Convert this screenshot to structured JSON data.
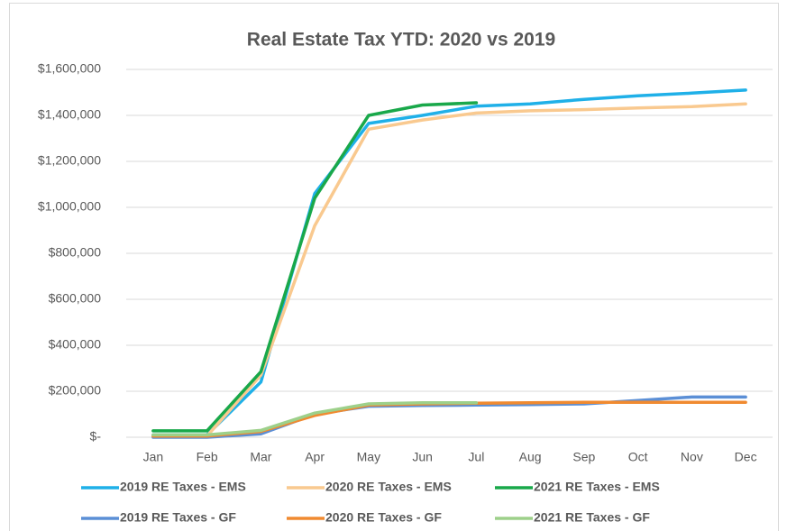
{
  "chart_data": {
    "type": "line",
    "title": "Real Estate Tax YTD:  2020 vs 2019",
    "categories": [
      "Jan",
      "Feb",
      "Mar",
      "Apr",
      "May",
      "Jun",
      "Jul",
      "Aug",
      "Sep",
      "Oct",
      "Nov",
      "Dec"
    ],
    "series": [
      {
        "name": "2019 RE Taxes - EMS",
        "color": "#1fb0e8",
        "values": [
          10000,
          10000,
          240000,
          1060000,
          1365000,
          1400000,
          1440000,
          1450000,
          1470000,
          1485000,
          1497000,
          1510000
        ]
      },
      {
        "name": "2020 RE Taxes - EMS",
        "color": "#f9c98f",
        "values": [
          5000,
          5000,
          270000,
          920000,
          1340000,
          1380000,
          1410000,
          1420000,
          1425000,
          1432000,
          1438000,
          1450000
        ]
      },
      {
        "name": "2021 RE Taxes - EMS",
        "color": "#19a84a",
        "values": [
          28000,
          28000,
          285000,
          1040000,
          1400000,
          1445000,
          1455000,
          null,
          null,
          null,
          null,
          null
        ]
      },
      {
        "name": "2019 RE Taxes - GF",
        "color": "#5b8fd6",
        "values": [
          0,
          0,
          15000,
          100000,
          135000,
          138000,
          140000,
          142000,
          145000,
          160000,
          175000,
          175000
        ]
      },
      {
        "name": "2020 RE Taxes - GF",
        "color": "#f08a30",
        "values": [
          5000,
          5000,
          25000,
          95000,
          140000,
          145000,
          148000,
          150000,
          152000,
          152000,
          152000,
          152000
        ]
      },
      {
        "name": "2021 RE Taxes - GF",
        "color": "#9dd08a",
        "values": [
          10000,
          10000,
          30000,
          105000,
          145000,
          150000,
          150000,
          null,
          null,
          null,
          null,
          null
        ]
      }
    ],
    "ylim": [
      0,
      1600000
    ],
    "yticks": [
      {
        "value": 0,
        "label": "$-"
      },
      {
        "value": 200000,
        "label": "$200,000"
      },
      {
        "value": 400000,
        "label": "$400,000"
      },
      {
        "value": 600000,
        "label": "$600,000"
      },
      {
        "value": 800000,
        "label": "$800,000"
      },
      {
        "value": 1000000,
        "label": "$1,000,000"
      },
      {
        "value": 1200000,
        "label": "$1,200,000"
      },
      {
        "value": 1400000,
        "label": "$1,400,000"
      },
      {
        "value": 1600000,
        "label": "$1,600,000"
      }
    ],
    "grid": true,
    "legend": "bottom"
  }
}
